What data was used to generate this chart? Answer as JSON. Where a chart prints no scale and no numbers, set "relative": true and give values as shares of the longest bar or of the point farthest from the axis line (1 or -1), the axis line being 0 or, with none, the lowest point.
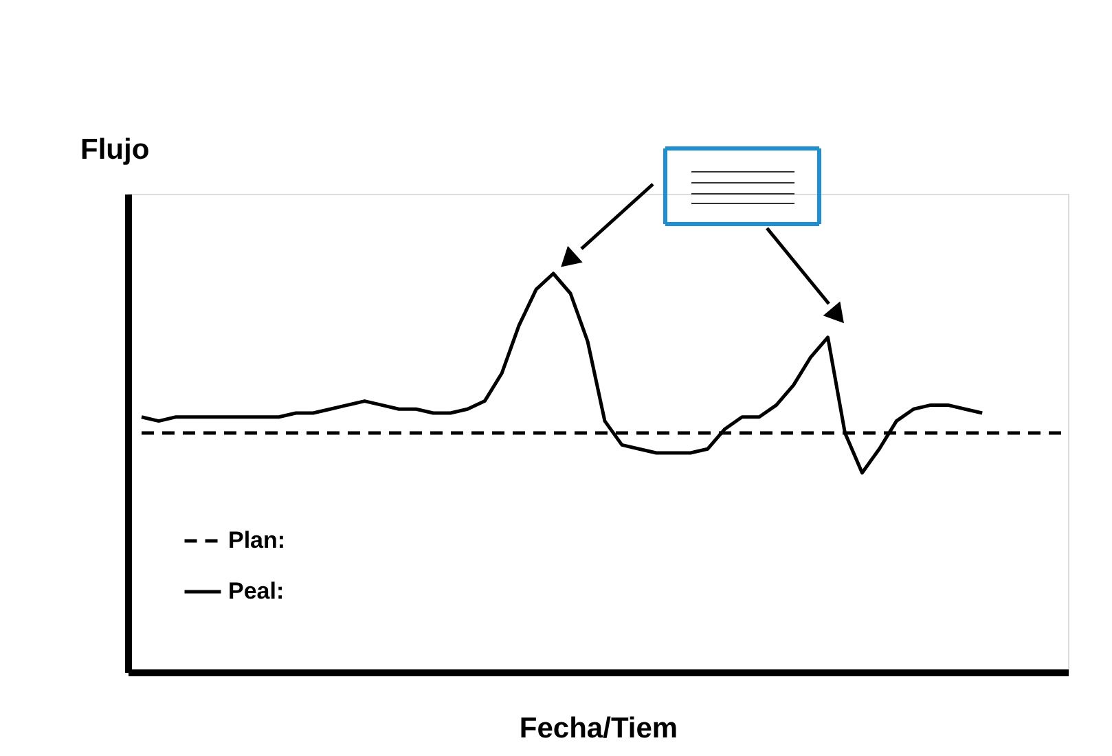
{
  "chart_data": {
    "type": "line",
    "relative": true,
    "xlabel": "Fecha/Tiem",
    "ylabel": "Flujo",
    "categories": [
      null,
      null,
      null,
      null,
      null,
      null,
      null,
      null,
      null,
      null,
      null,
      null,
      null,
      null,
      null,
      null,
      null,
      null,
      null,
      null,
      null,
      null,
      null,
      null,
      null,
      null,
      null,
      null,
      null,
      null,
      null,
      null,
      null,
      null,
      null,
      null,
      null,
      null,
      null,
      null,
      null,
      null,
      null,
      null,
      null,
      null,
      null,
      null,
      null,
      null,
      null,
      null,
      null,
      null,
      null
    ],
    "series": [
      {
        "name": "Plan:",
        "color": "#000000",
        "line_style": "dashed",
        "values": [
          0.6,
          0.6,
          0.6,
          0.6,
          0.6,
          0.6,
          0.6,
          0.6,
          0.6,
          0.6,
          0.6,
          0.6,
          0.6,
          0.6,
          0.6,
          0.6,
          0.6,
          0.6,
          0.6,
          0.6,
          0.6,
          0.6,
          0.6,
          0.6,
          0.6,
          0.6,
          0.6,
          0.6,
          0.6,
          0.6,
          0.6,
          0.6,
          0.6,
          0.6,
          0.6,
          0.6,
          0.6,
          0.6,
          0.6,
          0.6,
          0.6,
          0.6,
          0.6,
          0.6,
          0.6,
          0.6,
          0.6,
          0.6,
          0.6,
          0.6,
          0.6,
          0.6,
          0.6,
          0.6,
          0.6
        ]
      },
      {
        "name": "Peal:",
        "color": "#000000",
        "line_style": "solid",
        "values": [
          0.64,
          0.63,
          0.64,
          0.64,
          0.64,
          0.64,
          0.64,
          0.64,
          0.64,
          0.65,
          0.65,
          0.66,
          0.67,
          0.68,
          0.67,
          0.66,
          0.66,
          0.65,
          0.65,
          0.66,
          0.68,
          0.75,
          0.87,
          0.96,
          1.0,
          0.95,
          0.83,
          0.63,
          0.57,
          0.56,
          0.55,
          0.55,
          0.55,
          0.56,
          0.61,
          0.64,
          0.64,
          0.67,
          0.72,
          0.79,
          0.84,
          0.6,
          0.5,
          0.56,
          0.63,
          0.66,
          0.67,
          0.67,
          0.66,
          0.65,
          null,
          null,
          null,
          null,
          null
        ]
      }
    ],
    "legend": "bottom left",
    "grid": false,
    "tick_labels": false,
    "marker": "none"
  }
}
